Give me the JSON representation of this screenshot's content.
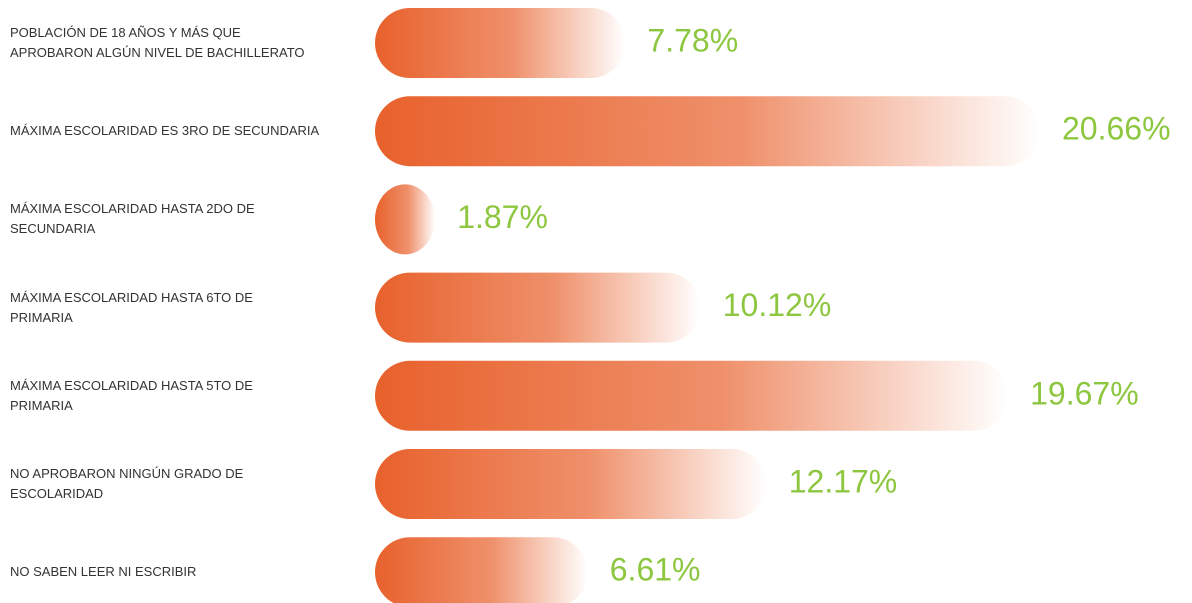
{
  "chart_data": {
    "type": "bar",
    "orientation": "horizontal",
    "categories": [
      "POBLACIÓN DE 18 AÑOS Y MÁS QUE\nAPROBARON ALGÚN NIVEL DE BACHILLERATO",
      "MÁXIMA ESCOLARIDAD ES 3RO DE SECUNDARIA",
      "MÁXIMA ESCOLARIDAD HASTA 2DO DE\nSECUNDARIA",
      "MÁXIMA ESCOLARIDAD HASTA 6TO DE\nPRIMARIA",
      "MÁXIMA ESCOLARIDAD HASTA 5TO DE\nPRIMARIA",
      "NO APROBARON NINGÚN GRADO DE\nESCOLARIDAD",
      "NO SABEN LEER NI ESCRIBIR"
    ],
    "values": [
      7.78,
      20.66,
      1.87,
      10.12,
      19.67,
      12.17,
      6.61
    ],
    "value_labels": [
      "7.78%",
      "20.66%",
      "1.87%",
      "10.12%",
      "19.67%",
      "12.17%",
      "6.61%"
    ],
    "color": "#e8612c",
    "label_color": "#8dc63f"
  }
}
